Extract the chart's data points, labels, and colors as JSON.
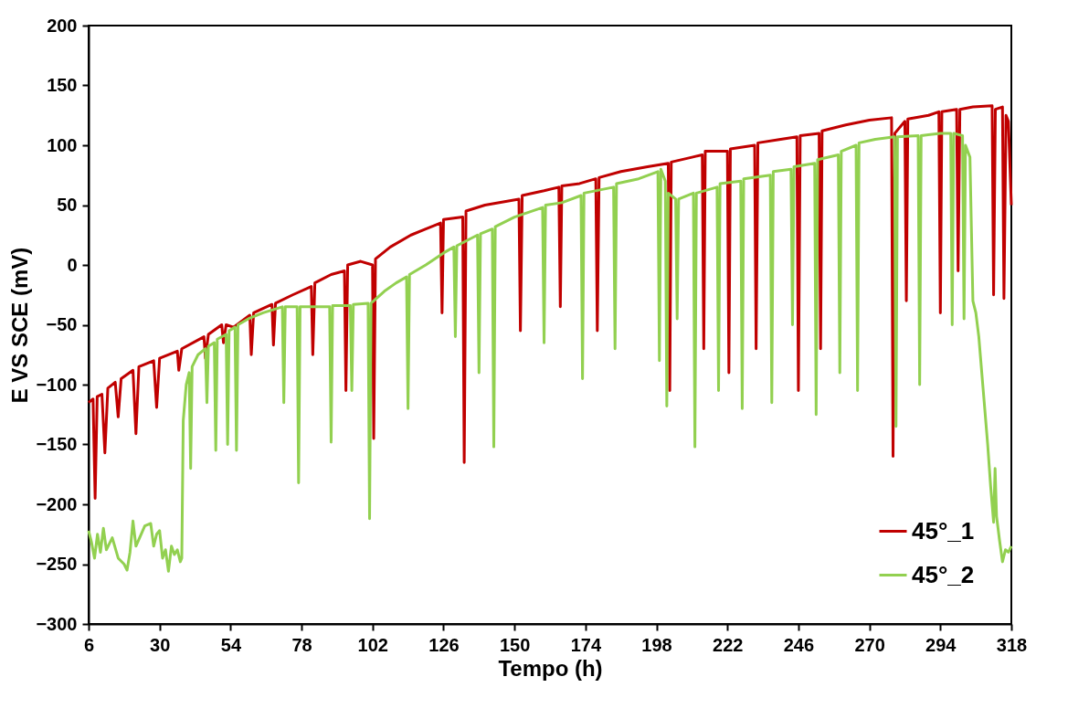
{
  "chart_data": {
    "type": "line",
    "xlabel": "Tempo (h)",
    "ylabel": "E VS SCE (mV)",
    "xlim": [
      6,
      318
    ],
    "ylim": [
      -300,
      200
    ],
    "xticks": [
      6,
      30,
      54,
      78,
      102,
      126,
      150,
      174,
      198,
      222,
      246,
      270,
      294,
      318
    ],
    "yticks": [
      -300,
      -250,
      -200,
      -150,
      -100,
      -50,
      0,
      50,
      100,
      150,
      200
    ],
    "legend": "bottom right",
    "series": [
      {
        "name": "45°_1",
        "color": "#c00000",
        "x": [
          6,
          7.5,
          8.2,
          8.9,
          10.5,
          11.5,
          12.5,
          15,
          16,
          17,
          21,
          22,
          23,
          28,
          29,
          30,
          36,
          36.5,
          37.5,
          45,
          45.5,
          46.5,
          51,
          51.6,
          52.5,
          55,
          60.5,
          61,
          61.8,
          68,
          68.5,
          69.2,
          75,
          81.3,
          81.8,
          82.5,
          88,
          92.5,
          93,
          93.6,
          98,
          102,
          102.4,
          103,
          108,
          115,
          120,
          125,
          125.5,
          126,
          132.5,
          133,
          133.6,
          140,
          151.5,
          152,
          152.6,
          160,
          165,
          165.5,
          166,
          172,
          177.5,
          178,
          178.6,
          186,
          195,
          202,
          202.5,
          203,
          210,
          213.5,
          214,
          214.5,
          222,
          222.5,
          223,
          231.2,
          231.7,
          232.3,
          240,
          245.5,
          246,
          246.6,
          253,
          253.5,
          254,
          262,
          270,
          277.5,
          278,
          278.6,
          282,
          282.5,
          283,
          290,
          293.5,
          294,
          294.5,
          299.5,
          300,
          300.6,
          305,
          311.5,
          312,
          312.6,
          315,
          315.5,
          316.2,
          317,
          318
        ],
        "values": [
          -115,
          -112,
          -195,
          -110,
          -108,
          -157,
          -103,
          -98,
          -127,
          -95,
          -88,
          -141,
          -85,
          -80,
          -119,
          -78,
          -72,
          -88,
          -70,
          -60,
          -78,
          -58,
          -50,
          -65,
          -50,
          -52,
          -42,
          -75,
          -40,
          -33,
          -67,
          -32,
          -25,
          -18,
          -75,
          -15,
          -8,
          -5,
          -105,
          0,
          3,
          0,
          -145,
          5,
          15,
          25,
          30,
          35,
          -40,
          38,
          40,
          -165,
          45,
          50,
          55,
          -55,
          58,
          62,
          65,
          -35,
          66,
          68,
          72,
          -55,
          73,
          78,
          82,
          85,
          -105,
          86,
          90,
          92,
          -70,
          95,
          95,
          -90,
          97,
          100,
          -70,
          102,
          105,
          107,
          -105,
          108,
          110,
          -70,
          112,
          117,
          121,
          123,
          -160,
          110,
          120,
          -30,
          122,
          125,
          128,
          -40,
          128,
          130,
          -5,
          130,
          132,
          133,
          -25,
          130,
          132,
          -28,
          125,
          120,
          50
        ]
      },
      {
        "name": "45°_2",
        "color": "#92d050",
        "x": [
          6,
          7,
          8,
          9,
          10,
          11,
          12,
          14,
          16,
          18,
          19,
          20,
          21,
          22,
          25,
          27,
          28,
          29,
          30,
          31,
          32,
          33,
          34,
          35,
          36,
          37,
          37.5,
          38,
          39,
          40,
          40.5,
          41,
          43,
          45.5,
          46,
          46.5,
          48.5,
          49,
          49.5,
          52.5,
          53,
          53.5,
          55.5,
          56,
          56.5,
          60,
          65,
          71.5,
          72,
          72.5,
          76.5,
          77,
          77.5,
          82,
          87.5,
          88,
          88.5,
          94.5,
          95,
          95.5,
          100.5,
          101,
          101.5,
          106,
          110,
          113.5,
          114,
          114.5,
          120,
          126,
          129.5,
          130,
          130.5,
          137.5,
          138,
          138.5,
          142.5,
          143,
          143.5,
          150,
          159.5,
          160,
          160.5,
          166,
          172.5,
          173,
          173.5,
          183.5,
          184,
          184.5,
          192,
          198.5,
          199,
          199.5,
          201,
          201.5,
          202,
          204.5,
          205,
          205.5,
          210.5,
          211,
          211.5,
          218.5,
          219,
          219.5,
          226.5,
          227,
          227.5,
          236.5,
          237,
          237.5,
          243.5,
          244,
          244.5,
          251.5,
          252,
          252.5,
          259.5,
          260,
          260.5,
          265.5,
          266,
          266.5,
          272,
          278.5,
          279,
          279.5,
          286.5,
          287,
          287.5,
          294,
          297.5,
          298,
          298.5,
          301.5,
          302,
          302.5,
          304,
          305,
          306,
          307,
          308,
          309,
          310,
          311,
          312,
          312.5,
          313,
          314,
          315,
          316,
          317,
          318
        ],
        "values": [
          -222,
          -232,
          -245,
          -225,
          -240,
          -220,
          -238,
          -228,
          -245,
          -250,
          -255,
          -240,
          -214,
          -235,
          -218,
          -216,
          -235,
          -225,
          -222,
          -245,
          -238,
          -256,
          -235,
          -242,
          -238,
          -248,
          -245,
          -130,
          -100,
          -90,
          -170,
          -85,
          -75,
          -70,
          -115,
          -68,
          -65,
          -155,
          -62,
          -58,
          -150,
          -55,
          -52,
          -155,
          -50,
          -45,
          -40,
          -35,
          -115,
          -35,
          -35,
          -182,
          -35,
          -35,
          -35,
          -148,
          -34,
          -34,
          -105,
          -33,
          -32,
          -212,
          -32,
          -22,
          -15,
          -10,
          -120,
          -8,
          0,
          10,
          15,
          -60,
          16,
          25,
          -90,
          26,
          30,
          -152,
          32,
          40,
          48,
          -65,
          50,
          52,
          58,
          -95,
          60,
          65,
          -70,
          68,
          72,
          78,
          -80,
          80,
          70,
          -118,
          60,
          55,
          -45,
          55,
          60,
          -152,
          60,
          65,
          -105,
          68,
          70,
          -120,
          72,
          75,
          -115,
          78,
          80,
          -50,
          82,
          85,
          -125,
          88,
          92,
          -90,
          95,
          100,
          -105,
          102,
          105,
          107,
          -135,
          107,
          108,
          -100,
          108,
          110,
          110,
          -50,
          110,
          108,
          -45,
          100,
          90,
          -30,
          -40,
          -60,
          -90,
          -120,
          -150,
          -185,
          -215,
          -170,
          -210,
          -230,
          -248,
          -238,
          -240,
          -235
        ]
      }
    ]
  }
}
